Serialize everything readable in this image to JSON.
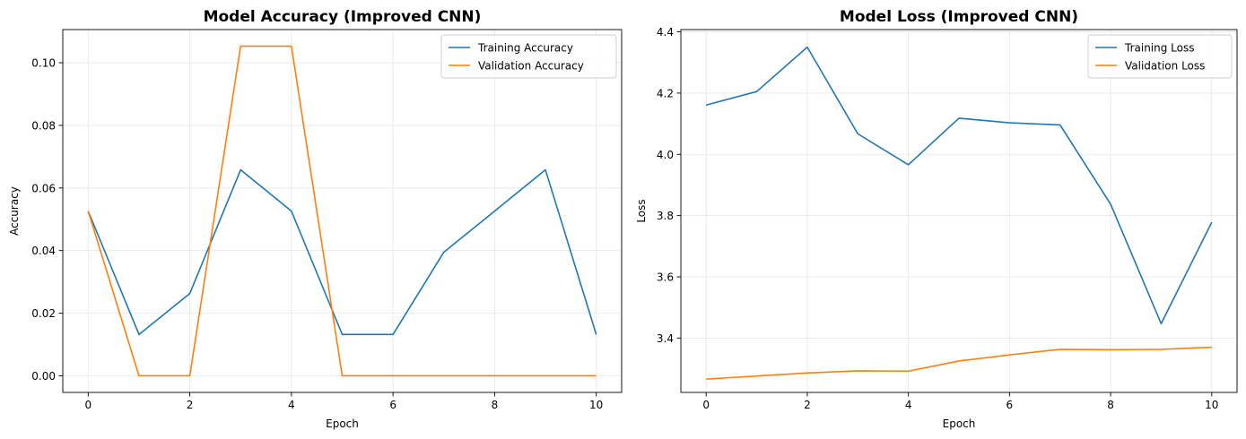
{
  "chart_data": [
    {
      "type": "line",
      "title": "Model Accuracy (Improved CNN)",
      "xlabel": "Epoch",
      "ylabel": "Accuracy",
      "x": [
        0,
        1,
        2,
        3,
        4,
        5,
        6,
        7,
        8,
        9,
        10
      ],
      "xlim": [
        -0.5,
        10.5
      ],
      "ylim": [
        -0.0053,
        0.1106
      ],
      "xticks": [
        0,
        2,
        4,
        6,
        8,
        10
      ],
      "yticks": [
        0.0,
        0.02,
        0.04,
        0.06,
        0.08,
        0.1
      ],
      "ytick_labels": [
        "0.00",
        "0.02",
        "0.04",
        "0.06",
        "0.08",
        "0.10"
      ],
      "grid": true,
      "legend_position": "top-right",
      "series": [
        {
          "name": "Training Accuracy",
          "color": "#1f77b4",
          "values": [
            0.0526,
            0.0132,
            0.0263,
            0.0658,
            0.0526,
            0.0132,
            0.0132,
            0.0395,
            0.0526,
            0.0658,
            0.0132
          ]
        },
        {
          "name": "Validation Accuracy",
          "color": "#ff7f0e",
          "values": [
            0.0526,
            0.0,
            0.0,
            0.1053,
            0.1053,
            0.0,
            0.0,
            0.0,
            0.0,
            0.0,
            0.0
          ]
        }
      ]
    },
    {
      "type": "line",
      "title": "Model Loss (Improved CNN)",
      "xlabel": "Epoch",
      "ylabel": "Loss",
      "x": [
        0,
        1,
        2,
        3,
        4,
        5,
        6,
        7,
        8,
        9,
        10
      ],
      "xlim": [
        -0.5,
        10.5
      ],
      "ylim": [
        3.2225,
        4.4075
      ],
      "xticks": [
        0,
        2,
        4,
        6,
        8,
        10
      ],
      "yticks": [
        3.4,
        3.6,
        3.8,
        4.0,
        4.2,
        4.4
      ],
      "ytick_labels": [
        "3.4",
        "3.6",
        "3.8",
        "4.0",
        "4.2",
        "4.4"
      ],
      "grid": true,
      "legend_position": "top-right",
      "series": [
        {
          "name": "Training Loss",
          "color": "#1f77b4",
          "values": [
            4.161,
            4.205,
            4.35,
            4.067,
            3.966,
            4.118,
            4.103,
            4.096,
            3.837,
            3.447,
            3.778
          ]
        },
        {
          "name": "Validation Loss",
          "color": "#ff7f0e",
          "values": [
            3.266,
            3.276,
            3.286,
            3.293,
            3.292,
            3.325,
            3.345,
            3.363,
            3.362,
            3.363,
            3.37
          ]
        }
      ]
    }
  ]
}
